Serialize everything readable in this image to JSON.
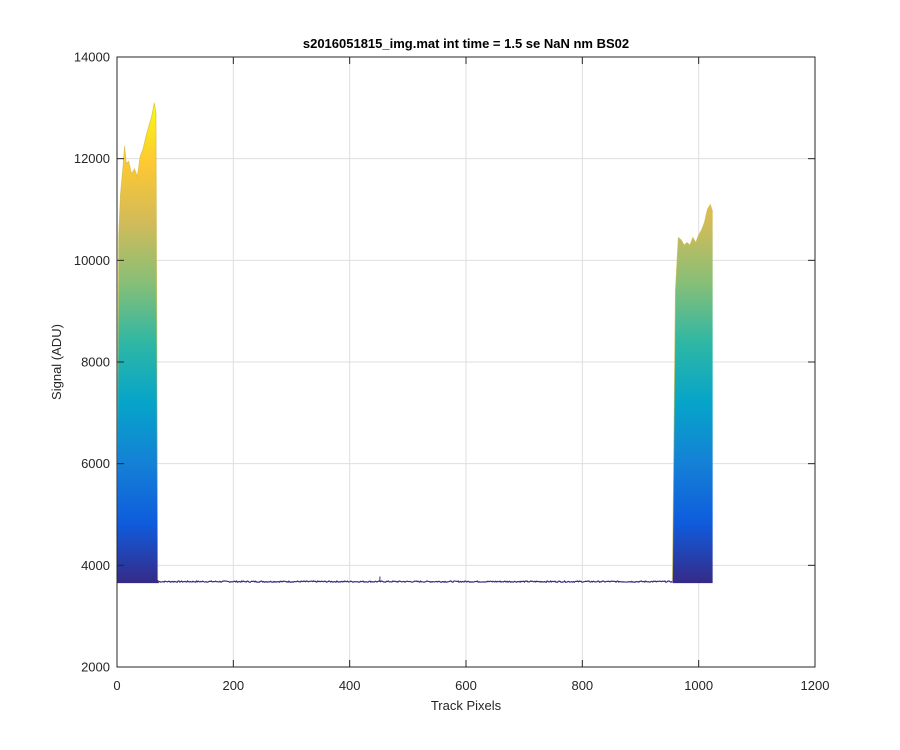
{
  "chart_data": {
    "type": "area",
    "title": "s2016051815_img.mat int time = 1.5 se  NaN nm BS02",
    "xlabel": "Track Pixels",
    "ylabel": "Signal (ADU)",
    "xlim": [
      0,
      1200
    ],
    "ylim": [
      2000,
      14000
    ],
    "xticks": [
      0,
      200,
      400,
      600,
      800,
      1000,
      1200
    ],
    "yticks": [
      2000,
      4000,
      6000,
      8000,
      10000,
      12000,
      14000
    ],
    "grid": true,
    "colormap": [
      "#352a87",
      "#0f5cdd",
      "#1481d6",
      "#06a4ca",
      "#2eb7a4",
      "#87bf77",
      "#d1bb59",
      "#fec832",
      "#f9fb0e"
    ],
    "baseline": 3680,
    "baseline_noise": 25,
    "spike": {
      "x": 452,
      "value": 3780
    },
    "band_floor": 3650,
    "series": [
      {
        "x": [
          0,
          3,
          6,
          10,
          13,
          16,
          20,
          25,
          30,
          35,
          40,
          45,
          50,
          55,
          60,
          64,
          67,
          70,
          72
        ],
        "values": [
          4200,
          10500,
          11300,
          11800,
          12250,
          11900,
          11950,
          11700,
          11800,
          11650,
          12050,
          12200,
          12450,
          12650,
          12850,
          13100,
          12900,
          3720,
          3690
        ]
      },
      {
        "x": [
          955,
          960,
          965,
          970,
          975,
          980,
          985,
          990,
          995,
          1000,
          1005,
          1010,
          1015,
          1020,
          1024
        ],
        "values": [
          3720,
          9400,
          10450,
          10400,
          10300,
          10350,
          10300,
          10450,
          10350,
          10500,
          10600,
          10750,
          11000,
          11100,
          10950
        ]
      }
    ]
  }
}
